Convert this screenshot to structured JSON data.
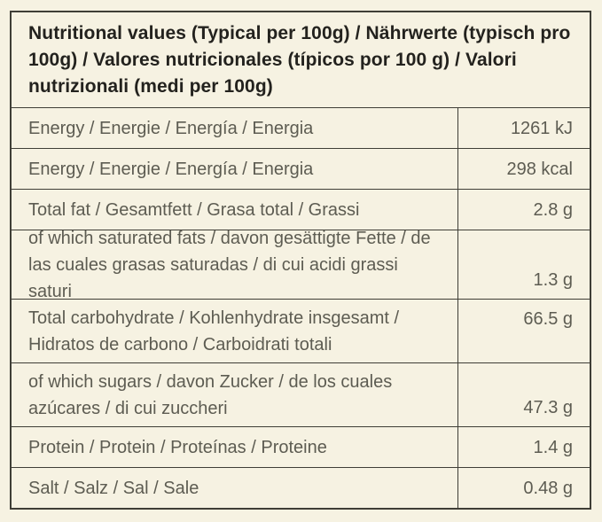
{
  "page": {
    "background_color": "#f6f2e2",
    "border_color": "#3f3e36",
    "header_text_color": "#23221e",
    "body_text_color": "#5d5c52"
  },
  "table": {
    "title": "Nutritional values (Typical per 100g) / Nährwerte (typisch pro 100g) / Valores nutricionales (típicos por 100 g) / Valori nutrizionali (medi per 100g)",
    "rows": [
      {
        "label": "Energy / Energie / Energía / Energia",
        "value": "1261 kJ"
      },
      {
        "label": "Energy / Energie / Energía / Energia",
        "value": "298 kcal"
      },
      {
        "label": "Total fat / Gesamtfett / Grasa total / Grassi",
        "value": "2.8 g"
      },
      {
        "label": "of which saturated fats /  davon gesättigte Fette / de las cuales grasas saturadas / di cui acidi grassi saturi",
        "value": "1.3 g"
      },
      {
        "label": "Total carbohydrate / Kohlenhydrate insgesamt / Hidratos de carbono / Carboidrati totali",
        "value": "66.5 g"
      },
      {
        "label": "of which sugars / davon Zucker / de los cuales azúcares / di cui zuccheri",
        "value": "47.3 g"
      },
      {
        "label": "Protein / Protein / Proteínas / Proteine",
        "value": "1.4 g"
      },
      {
        "label": "Salt / Salz / Sal / Sale",
        "value": "0.48 g"
      }
    ]
  }
}
